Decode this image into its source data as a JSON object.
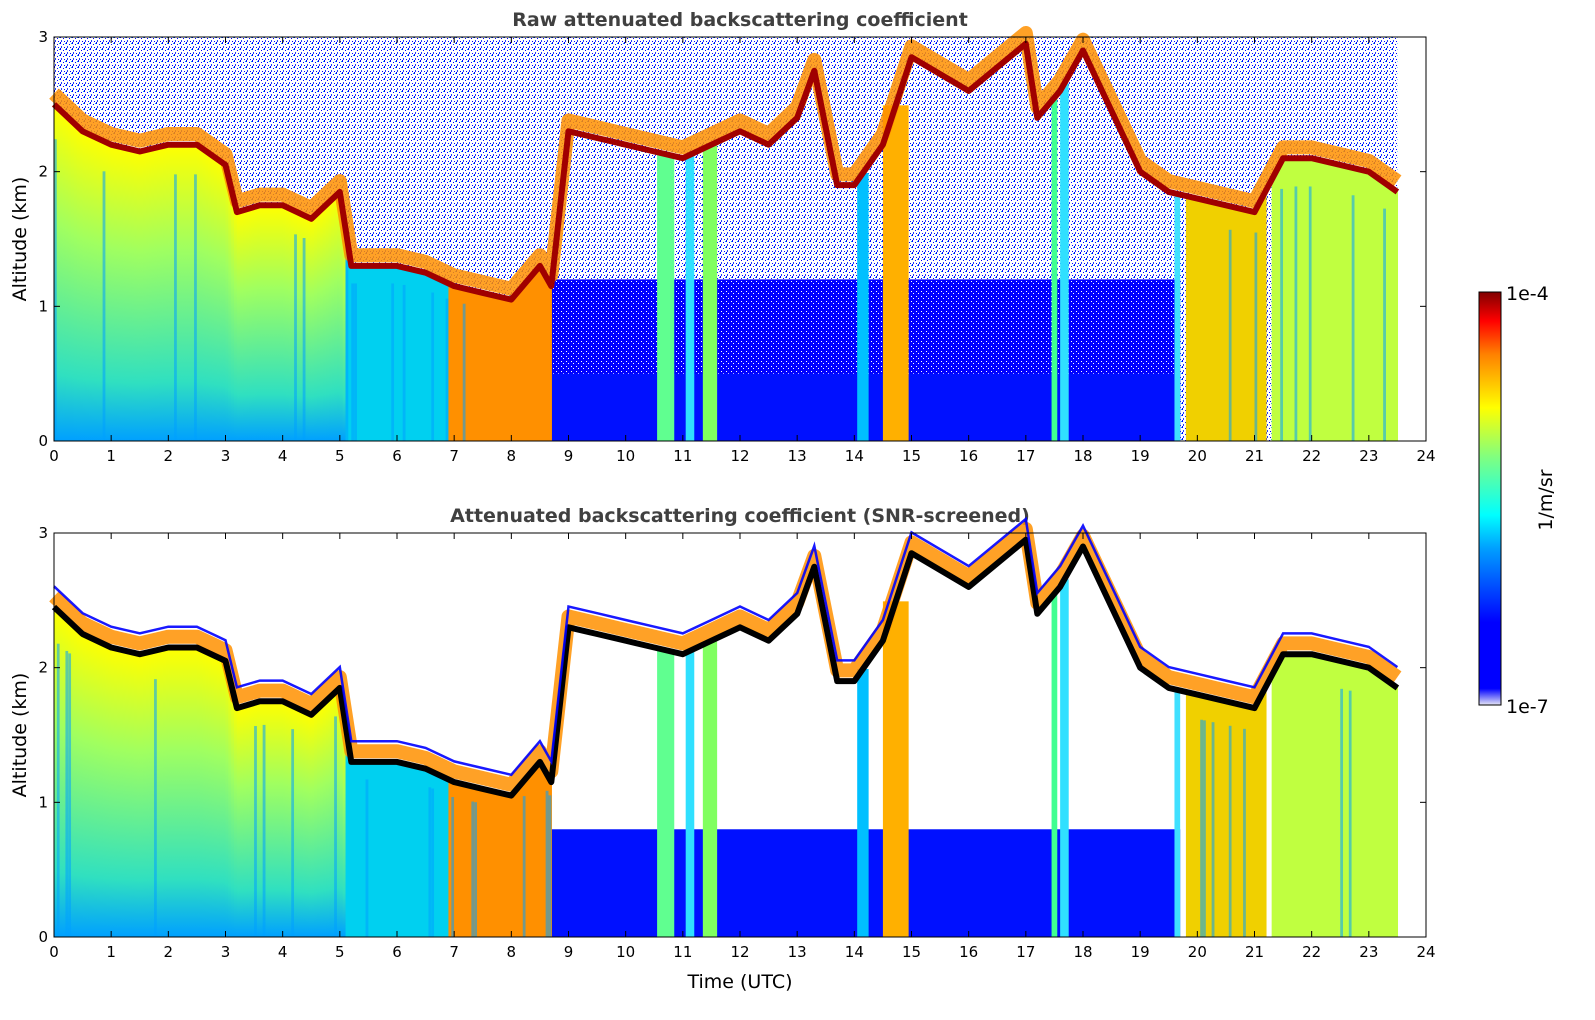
{
  "chart_data": [
    {
      "type": "heatmap",
      "title": "Raw attenuated backscattering coefficient",
      "xlabel": "",
      "ylabel": "Altitude (km)",
      "xlim": [
        0,
        24
      ],
      "ylim": [
        0,
        3
      ],
      "xticks": [
        "0",
        "1",
        "2",
        "3",
        "4",
        "5",
        "6",
        "7",
        "8",
        "9",
        "10",
        "11",
        "12",
        "13",
        "14",
        "15",
        "16",
        "17",
        "18",
        "19",
        "20",
        "21",
        "22",
        "23",
        "24"
      ],
      "yticks": [
        "0",
        "1",
        "2",
        "3"
      ],
      "data_end_x": 23.5,
      "cloud_base_km": [
        [
          0,
          2.5
        ],
        [
          0.5,
          2.3
        ],
        [
          1,
          2.2
        ],
        [
          1.5,
          2.15
        ],
        [
          2,
          2.2
        ],
        [
          2.5,
          2.2
        ],
        [
          3,
          2.05
        ],
        [
          3.2,
          1.7
        ],
        [
          3.6,
          1.75
        ],
        [
          4,
          1.75
        ],
        [
          4.5,
          1.65
        ],
        [
          5,
          1.85
        ],
        [
          5.2,
          1.3
        ],
        [
          6,
          1.3
        ],
        [
          6.5,
          1.25
        ],
        [
          7,
          1.15
        ],
        [
          7.5,
          1.1
        ],
        [
          8,
          1.05
        ],
        [
          8.5,
          1.3
        ],
        [
          8.7,
          1.15
        ],
        [
          9,
          2.3
        ],
        [
          9.5,
          2.25
        ],
        [
          10,
          2.2
        ],
        [
          10.5,
          2.15
        ],
        [
          11,
          2.1
        ],
        [
          11.5,
          2.2
        ],
        [
          12,
          2.3
        ],
        [
          12.5,
          2.2
        ],
        [
          13,
          2.4
        ],
        [
          13.3,
          2.75
        ],
        [
          13.7,
          1.9
        ],
        [
          14,
          1.9
        ],
        [
          14.5,
          2.2
        ],
        [
          15,
          2.85
        ],
        [
          16,
          2.6
        ],
        [
          17,
          2.95
        ],
        [
          17.2,
          2.4
        ],
        [
          17.6,
          2.6
        ],
        [
          18,
          2.9
        ],
        [
          19,
          2.0
        ],
        [
          19.5,
          1.85
        ],
        [
          20,
          1.8
        ],
        [
          20.5,
          1.75
        ],
        [
          21,
          1.7
        ],
        [
          21.5,
          2.1
        ],
        [
          22,
          2.1
        ],
        [
          22.5,
          2.05
        ],
        [
          23,
          2.0
        ],
        [
          23.5,
          1.85
        ]
      ],
      "notes": ""
    },
    {
      "type": "heatmap",
      "title": "Attenuated backscattering coefficient (SNR-screened)",
      "xlabel": "Time (UTC)",
      "ylabel": "Altitude (km)",
      "xlim": [
        0,
        24
      ],
      "ylim": [
        0,
        3
      ],
      "xticks": [
        "0",
        "1",
        "2",
        "3",
        "4",
        "5",
        "6",
        "7",
        "8",
        "9",
        "10",
        "11",
        "12",
        "13",
        "14",
        "15",
        "16",
        "17",
        "18",
        "19",
        "20",
        "21",
        "22",
        "23",
        "24"
      ],
      "yticks": [
        "0",
        "1",
        "2",
        "3"
      ],
      "data_end_x": 23.5,
      "cloud_base_km": [
        [
          0,
          2.45
        ],
        [
          0.5,
          2.25
        ],
        [
          1,
          2.15
        ],
        [
          1.5,
          2.1
        ],
        [
          2,
          2.15
        ],
        [
          2.5,
          2.15
        ],
        [
          3,
          2.05
        ],
        [
          3.2,
          1.7
        ],
        [
          3.6,
          1.75
        ],
        [
          4,
          1.75
        ],
        [
          4.5,
          1.65
        ],
        [
          5,
          1.85
        ],
        [
          5.2,
          1.3
        ],
        [
          6,
          1.3
        ],
        [
          6.5,
          1.25
        ],
        [
          7,
          1.15
        ],
        [
          7.5,
          1.1
        ],
        [
          8,
          1.05
        ],
        [
          8.5,
          1.3
        ],
        [
          8.7,
          1.15
        ],
        [
          9,
          2.3
        ],
        [
          9.5,
          2.25
        ],
        [
          10,
          2.2
        ],
        [
          10.5,
          2.15
        ],
        [
          11,
          2.1
        ],
        [
          11.5,
          2.2
        ],
        [
          12,
          2.3
        ],
        [
          12.5,
          2.2
        ],
        [
          13,
          2.4
        ],
        [
          13.3,
          2.75
        ],
        [
          13.7,
          1.9
        ],
        [
          14,
          1.9
        ],
        [
          14.5,
          2.2
        ],
        [
          15,
          2.85
        ],
        [
          16,
          2.6
        ],
        [
          17,
          2.95
        ],
        [
          17.2,
          2.4
        ],
        [
          17.6,
          2.6
        ],
        [
          18,
          2.9
        ],
        [
          19,
          2.0
        ],
        [
          19.5,
          1.85
        ],
        [
          20,
          1.8
        ],
        [
          20.5,
          1.75
        ],
        [
          21,
          1.7
        ],
        [
          21.5,
          2.1
        ],
        [
          22,
          2.1
        ],
        [
          22.5,
          2.05
        ],
        [
          23,
          2.0
        ],
        [
          23.5,
          1.85
        ]
      ]
    }
  ],
  "colorbar": {
    "label": "1/m/sr",
    "max_label": "1e-4",
    "min_label": "1e-7",
    "colormap": "jet",
    "scale": "log",
    "colors": [
      "#e6e6f5",
      "#0000ff",
      "#00a0ff",
      "#00ffff",
      "#80ff80",
      "#ffff00",
      "#ff8000",
      "#ff0000",
      "#800000"
    ]
  },
  "colors": {
    "background": "#ffffff",
    "screened_out": "#ffffff",
    "title_text": "#404040",
    "saturated": "#000000"
  }
}
